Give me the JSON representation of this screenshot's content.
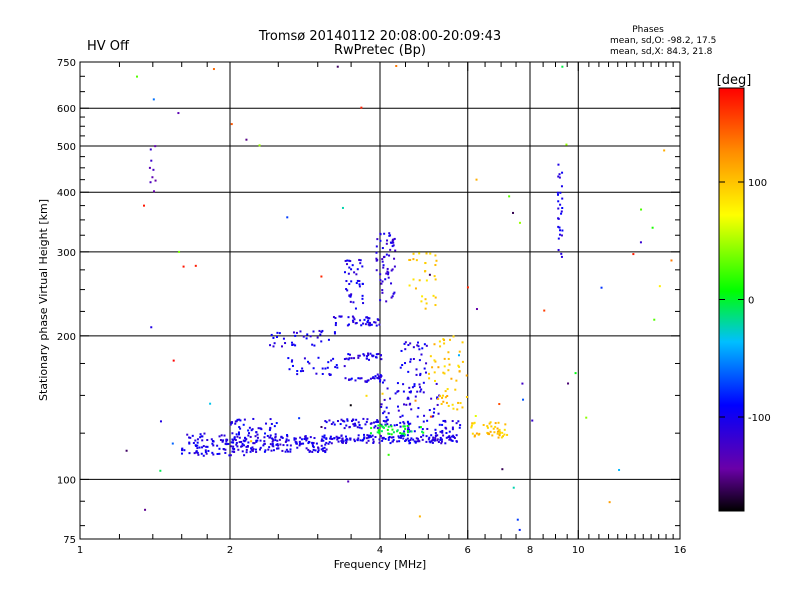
{
  "header": {
    "status": "HV Off",
    "status_color": "#cc0000",
    "title_line1": "Tromsø 20140112 20:08:00-20:09:43",
    "title_line2": "RwPretec (Bp)",
    "stats_title": "Phases",
    "stats_o": "mean, sd,O: -98.2, 17.5",
    "stats_x": "mean, sd,X:  84.3, 21.8"
  },
  "chart_data": {
    "type": "scatter",
    "title": "Tromsø 20140112 20:08:00-20:09:43",
    "subtitle": "RwPretec (Bp)",
    "xlabel": "Frequency [MHz]",
    "ylabel": "Stationary phase Virtual Height [km]",
    "x_scale": "log",
    "y_scale": "log",
    "xlim": [
      1,
      16
    ],
    "ylim": [
      75,
      750
    ],
    "x_ticks": [
      1,
      2,
      4,
      6,
      8,
      10,
      16
    ],
    "x_tick_labels": [
      "1",
      "2",
      "4",
      "6",
      "8",
      "10",
      "16"
    ],
    "y_ticks": [
      75,
      100,
      200,
      300,
      400,
      500,
      600,
      750
    ],
    "y_tick_labels": [
      "75",
      "100",
      "200",
      "300",
      "400",
      "500",
      "600",
      "750"
    ],
    "grid_x": [
      2,
      4,
      6,
      8,
      10
    ],
    "grid_y": [
      100,
      200,
      300,
      400,
      500,
      600
    ],
    "grid": true,
    "colorbar": {
      "label": "[deg]",
      "min": -180,
      "max": 180,
      "ticks": [
        100,
        0,
        -100
      ],
      "tick_labels": [
        "100",
        "0",
        "-100"
      ],
      "colors": [
        "#000000",
        "#6a00a8",
        "#0000ff",
        "#00bfff",
        "#00ff00",
        "#ffff00",
        "#ff8c00",
        "#ff0000"
      ]
    },
    "clusters": [
      {
        "x": [
          1.6,
          2.15
        ],
        "y": [
          112,
          125
        ],
        "n": 110,
        "phase": -105
      },
      {
        "x": [
          2.15,
          3.2
        ],
        "y": [
          114,
          124
        ],
        "n": 150,
        "phase": -105
      },
      {
        "x": [
          3.2,
          5.8
        ],
        "y": [
          119,
          124
        ],
        "n": 150,
        "phase": -105
      },
      {
        "x": [
          2.0,
          2.5
        ],
        "y": [
          124,
          134
        ],
        "n": 40,
        "phase": -100
      },
      {
        "x": [
          3.1,
          4.4
        ],
        "y": [
          128,
          134
        ],
        "n": 60,
        "phase": -105
      },
      {
        "x": [
          4.4,
          5.8
        ],
        "y": [
          125,
          133
        ],
        "n": 40,
        "phase": -100
      },
      {
        "x": [
          4.0,
          5.3
        ],
        "y": [
          135,
          160
        ],
        "n": 60,
        "phase": -105
      },
      {
        "x": [
          3.4,
          4.1
        ],
        "y": [
          160,
          166
        ],
        "n": 30,
        "phase": -105
      },
      {
        "x": [
          3.4,
          4.1
        ],
        "y": [
          178,
          184
        ],
        "n": 30,
        "phase": -105
      },
      {
        "x": [
          2.6,
          3.4
        ],
        "y": [
          165,
          180
        ],
        "n": 30,
        "phase": -100
      },
      {
        "x": [
          2.4,
          3.3
        ],
        "y": [
          190,
          205
        ],
        "n": 35,
        "phase": -105
      },
      {
        "x": [
          3.2,
          4.0
        ],
        "y": [
          210,
          220
        ],
        "n": 40,
        "phase": -105
      },
      {
        "x": [
          3.4,
          3.7
        ],
        "y": [
          228,
          290
        ],
        "n": 40,
        "phase": -105
      },
      {
        "x": [
          3.9,
          4.3
        ],
        "y": [
          230,
          330
        ],
        "n": 60,
        "phase": -110
      },
      {
        "x": [
          4.4,
          5.0
        ],
        "y": [
          165,
          195
        ],
        "n": 30,
        "phase": -105
      },
      {
        "x": [
          4.5,
          5.2
        ],
        "y": [
          225,
          300
        ],
        "n": 30,
        "phase": 95
      },
      {
        "x": [
          5.0,
          6.0
        ],
        "y": [
          140,
          200
        ],
        "n": 55,
        "phase": 100
      },
      {
        "x": [
          6.1,
          7.2
        ],
        "y": [
          122,
          132
        ],
        "n": 45,
        "phase": 100
      },
      {
        "x": [
          3.8,
          5.0
        ],
        "y": [
          124,
          130
        ],
        "n": 40,
        "phase": 0
      },
      {
        "x": [
          1.38,
          1.42
        ],
        "y": [
          380,
          500
        ],
        "n": 9,
        "phase": -130
      },
      {
        "x": [
          9.1,
          9.3
        ],
        "y": [
          285,
          470
        ],
        "n": 28,
        "phase": -105
      },
      {
        "x": [
          1.0,
          16.0
        ],
        "y": [
          78,
          740
        ],
        "n": 70,
        "phase": "random"
      }
    ]
  }
}
